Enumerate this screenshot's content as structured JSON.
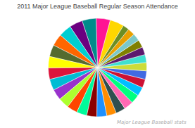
{
  "chart_data": {
    "type": "pie",
    "title": "2011 Major League Baseball Regular Season Attendance",
    "annotations": [
      "Major League Baseball stats"
    ],
    "values": [
      3440,
      3422,
      3400,
      3200,
      3100,
      2900,
      2850,
      2800,
      2750,
      2700,
      2650,
      2600,
      2550,
      2500,
      2450,
      2400,
      2350,
      2300,
      2250,
      2200,
      2150,
      2100,
      2050,
      2000,
      1950,
      1900,
      1850,
      1800,
      1750,
      1500
    ],
    "colors": [
      "#FFD700",
      "#FF1493",
      "#008B8B",
      "#6B0080",
      "#00CED1",
      "#FF6600",
      "#556B2F",
      "#FFFF00",
      "#DC143C",
      "#00BCD4",
      "#9932CC",
      "#ADFF2F",
      "#FF4500",
      "#00FA9A",
      "#8B0000",
      "#1E90FF",
      "#FF8C00",
      "#2F4F4F",
      "#FF69B4",
      "#00FF7F",
      "#00BFFF",
      "#CC1133",
      "#4169E1",
      "#CDDC39",
      "#40E0D0",
      "#5D1A6E",
      "#808000",
      "#7BC8C8",
      "#E8A000",
      "#6B8E23"
    ]
  }
}
